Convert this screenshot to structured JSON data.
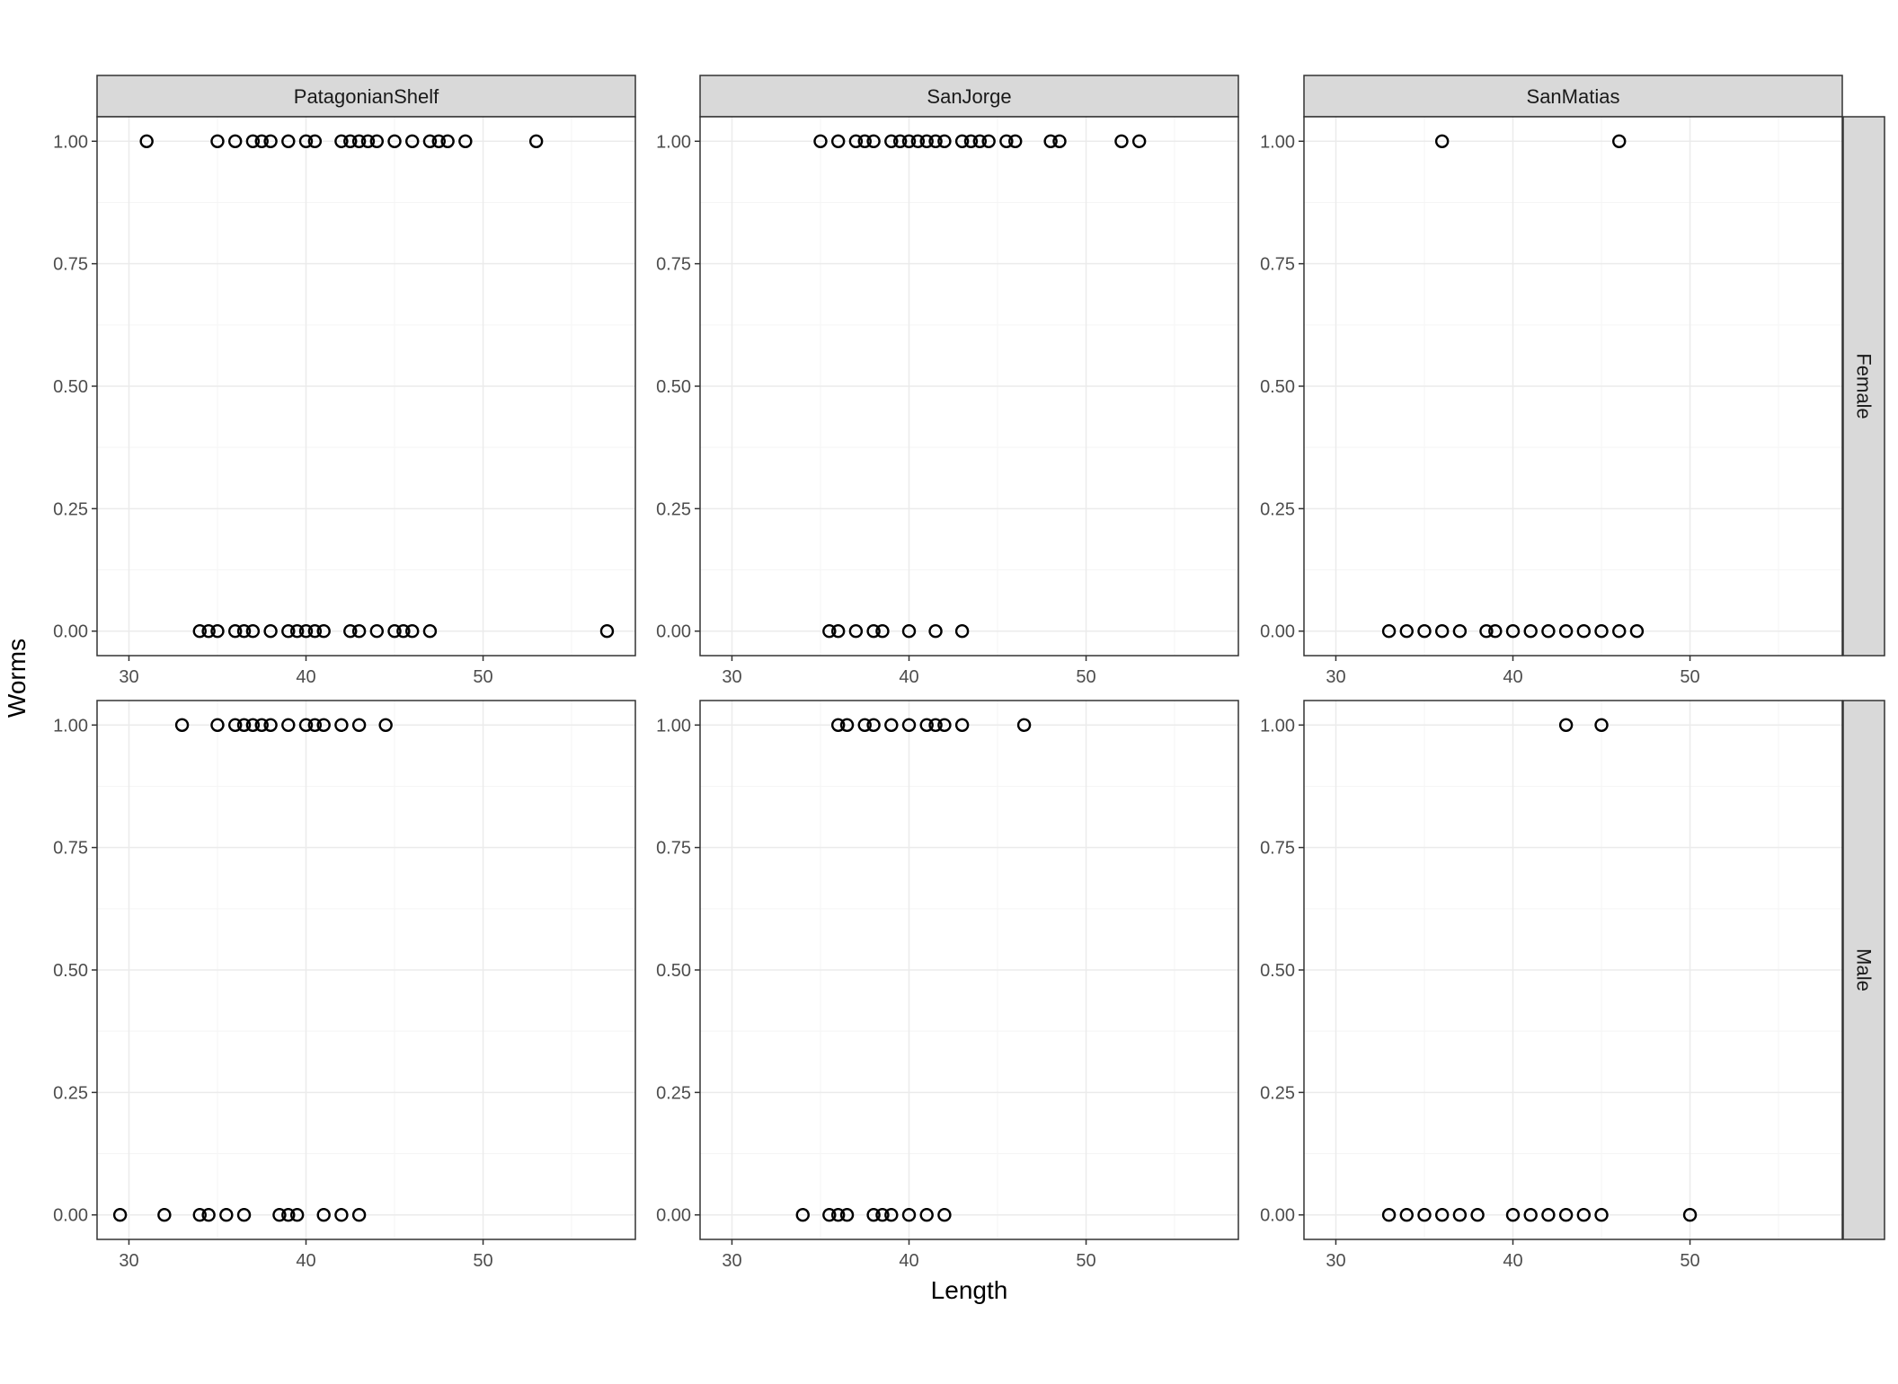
{
  "chart_data": {
    "type": "scatter",
    "xlabel": "Length",
    "ylabel": "Worms",
    "xlim": [
      28.2,
      58.6
    ],
    "ylim": [
      -0.05,
      1.05
    ],
    "x_ticks": [
      30,
      40,
      50
    ],
    "x_tick_labels": [
      "30",
      "40",
      "50"
    ],
    "y_ticks": [
      0,
      0.25,
      0.5,
      0.75,
      1
    ],
    "y_tick_labels": [
      "0.00",
      "0.25",
      "0.50",
      "0.75",
      "1.00"
    ],
    "grid": true,
    "columns": [
      "PatagonianShelf",
      "SanJorge",
      "SanMatias"
    ],
    "rows": [
      "Female",
      "Male"
    ],
    "marker": "open-circle",
    "colors": {
      "points": "#000000",
      "strip_fill": "#d9d9d9",
      "grid_major": "#ebebeb",
      "grid_minor": "#f5f5f5",
      "panel_border": "#333333"
    },
    "panels": [
      {
        "column": "PatagonianShelf",
        "row": "Female",
        "points_y1": [
          31,
          35,
          36,
          37,
          37.5,
          38,
          39,
          40,
          40.5,
          42,
          42.5,
          43,
          43.5,
          44,
          45,
          46,
          47,
          47.5,
          48,
          49,
          53
        ],
        "points_y0": [
          34,
          34.5,
          35,
          36,
          36.5,
          37,
          38,
          39,
          39.5,
          40,
          40.5,
          41,
          42.5,
          43,
          44,
          45,
          45.5,
          46,
          47,
          57
        ]
      },
      {
        "column": "SanJorge",
        "row": "Female",
        "points_y1": [
          35,
          36,
          37,
          37.5,
          38,
          39,
          39.5,
          40,
          40.5,
          41,
          41.5,
          42,
          43,
          43.5,
          44,
          44.5,
          45.5,
          46,
          48,
          48.5,
          52,
          53
        ],
        "points_y0": [
          35.5,
          36,
          37,
          38,
          38.5,
          40,
          41.5,
          43
        ]
      },
      {
        "column": "SanMatias",
        "row": "Female",
        "points_y1": [
          36,
          46
        ],
        "points_y0": [
          33,
          34,
          35,
          36,
          37,
          38.5,
          39,
          40,
          41,
          42,
          43,
          44,
          45,
          46,
          47
        ]
      },
      {
        "column": "PatagonianShelf",
        "row": "Male",
        "points_y1": [
          33,
          35,
          36,
          36.5,
          37,
          37.5,
          38,
          39,
          40,
          40.5,
          41,
          42,
          43,
          44.5
        ],
        "points_y0": [
          29.5,
          32,
          34,
          34.5,
          35.5,
          36.5,
          38.5,
          39,
          39.5,
          41,
          42,
          43
        ]
      },
      {
        "column": "SanJorge",
        "row": "Male",
        "points_y1": [
          36,
          36.5,
          37.5,
          38,
          39,
          40,
          41,
          41.5,
          42,
          43,
          46.5
        ],
        "points_y0": [
          34,
          35.5,
          36,
          36.5,
          38,
          38.5,
          39,
          40,
          41,
          42
        ]
      },
      {
        "column": "SanMatias",
        "row": "Male",
        "points_y1": [
          43,
          45
        ],
        "points_y0": [
          33,
          34,
          35,
          36,
          37,
          38,
          40,
          41,
          42,
          43,
          44,
          45,
          50
        ]
      }
    ]
  }
}
